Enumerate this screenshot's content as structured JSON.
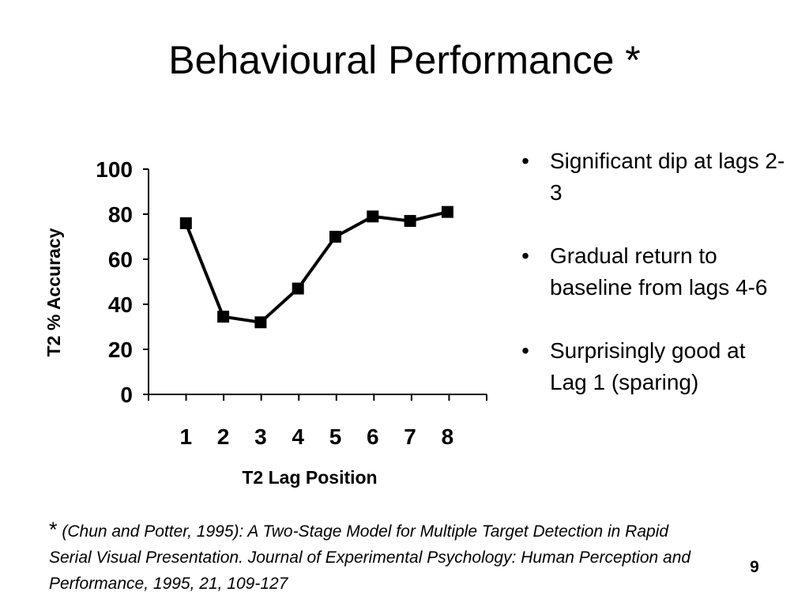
{
  "slide": {
    "title": "Behavioural Performance *",
    "number": "9"
  },
  "bullets": [
    "Significant dip at lags 2-3",
    "Gradual return to baseline from lags 4-6",
    "Surprisingly good at Lag 1 (sparing)"
  ],
  "footnote": {
    "star": "*",
    "text": " (Chun and Potter, 1995): A Two-Stage Model for Multiple Target Detection in Rapid Serial Visual Presentation. Journal of Experimental Psychology: Human Perception and Performance, 1995, 21, 109-127"
  },
  "chart_data": {
    "type": "line",
    "x": [
      1,
      2,
      3,
      4,
      5,
      6,
      7,
      8
    ],
    "categories": [
      "1",
      "2",
      "3",
      "4",
      "5",
      "6",
      "7",
      "8"
    ],
    "series": [
      {
        "values": [
          76,
          34.5,
          32,
          47,
          70,
          79,
          77,
          81
        ]
      }
    ],
    "xlabel": "T2 Lag Position",
    "ylabel": "T2 % Accuracy",
    "ylim": [
      0,
      100
    ],
    "yticks": [
      0,
      20,
      40,
      60,
      80,
      100
    ],
    "grid": false,
    "legend": "none",
    "marker": "square",
    "line_color": "#000000"
  }
}
